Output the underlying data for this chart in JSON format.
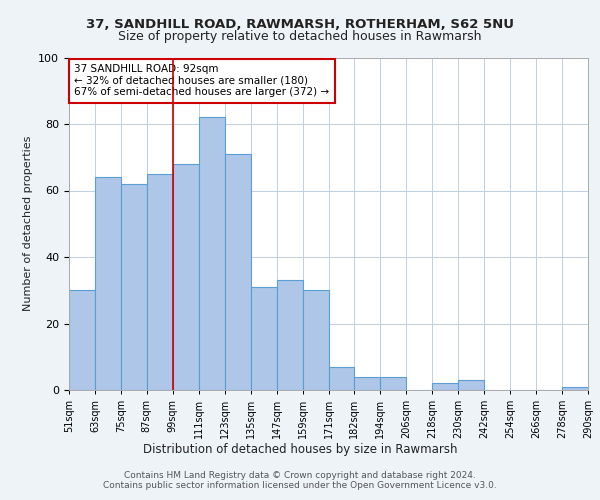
{
  "title1": "37, SANDHILL ROAD, RAWMARSH, ROTHERHAM, S62 5NU",
  "title2": "Size of property relative to detached houses in Rawmarsh",
  "xlabel": "Distribution of detached houses by size in Rawmarsh",
  "ylabel": "Number of detached properties",
  "bins": [
    "51sqm",
    "63sqm",
    "75sqm",
    "87sqm",
    "99sqm",
    "111sqm",
    "123sqm",
    "135sqm",
    "147sqm",
    "159sqm",
    "171sqm",
    "182sqm",
    "194sqm",
    "206sqm",
    "218sqm",
    "230sqm",
    "242sqm",
    "254sqm",
    "266sqm",
    "278sqm",
    "290sqm"
  ],
  "values": [
    30,
    64,
    62,
    65,
    68,
    82,
    71,
    31,
    33,
    30,
    7,
    4,
    4,
    0,
    2,
    3,
    0,
    0,
    0,
    1
  ],
  "bar_color": "#aec6e8",
  "bar_edge_color": "#5a9fd4",
  "property_line_x": 3.5,
  "annotation_text": "37 SANDHILL ROAD: 92sqm\n← 32% of detached houses are smaller (180)\n67% of semi-detached houses are larger (372) →",
  "annotation_box_color": "#ffffff",
  "annotation_box_edge": "#cc0000",
  "vline_color": "#cc0000",
  "footer": "Contains HM Land Registry data © Crown copyright and database right 2024.\nContains public sector information licensed under the Open Government Licence v3.0.",
  "bg_color": "#eef3f8",
  "plot_bg_color": "#ffffff",
  "ylim": [
    0,
    100
  ],
  "grid_color": "#c0cfe0"
}
